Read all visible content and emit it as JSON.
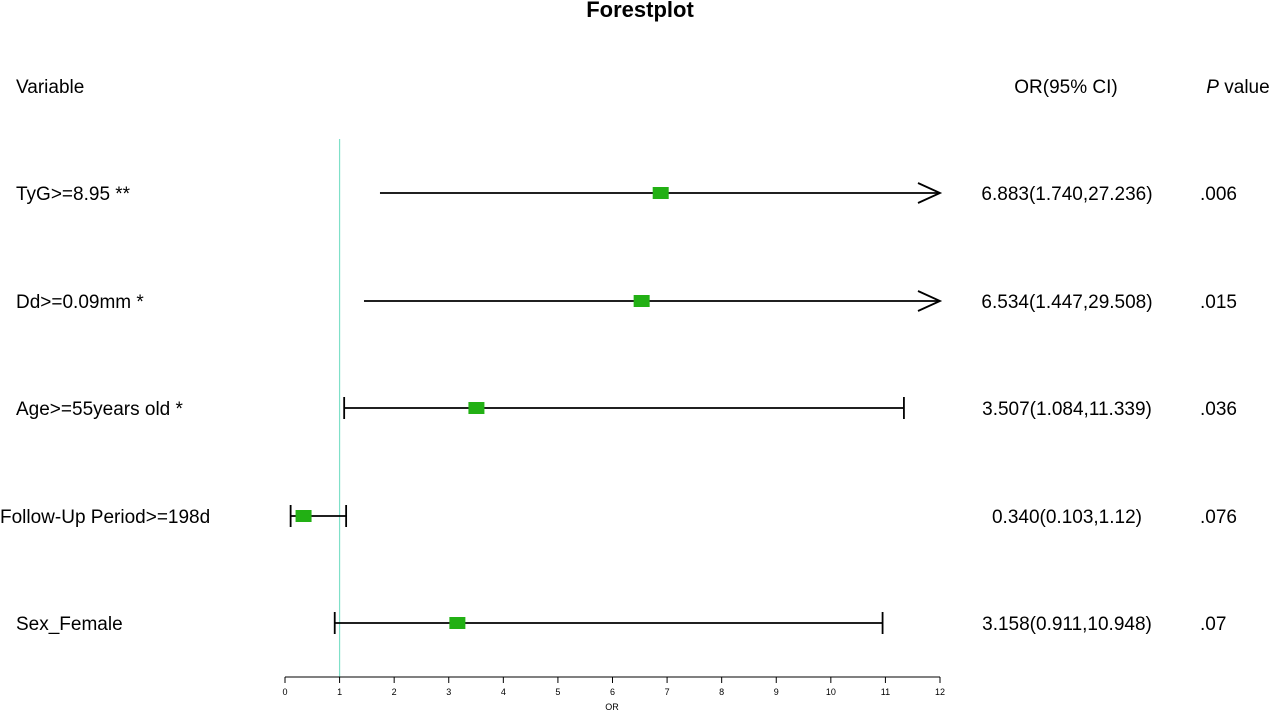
{
  "chart_data": {
    "type": "forest",
    "title": "Forestplot",
    "xlabel": "OR",
    "xlim": [
      0,
      12
    ],
    "xticks": [
      0,
      1,
      2,
      3,
      4,
      5,
      6,
      7,
      8,
      9,
      10,
      11,
      12
    ],
    "reference_line": 1,
    "columns": {
      "variable": "Variable",
      "or_ci": "OR(95% CI)",
      "p_italic": "P",
      "p_rest": " value"
    },
    "rows": [
      {
        "label": "TyG>=8.95 **",
        "or": 6.883,
        "lower": 1.74,
        "upper": 27.236,
        "or_ci_text": "6.883(1.740,27.236)",
        "p_text": ".006"
      },
      {
        "label": "Dd>=0.09mm *",
        "or": 6.534,
        "lower": 1.447,
        "upper": 29.508,
        "or_ci_text": "6.534(1.447,29.508)",
        "p_text": ".015"
      },
      {
        "label": "Age>=55years old *",
        "or": 3.507,
        "lower": 1.084,
        "upper": 11.339,
        "or_ci_text": "3.507(1.084,11.339)",
        "p_text": ".036"
      },
      {
        "label": "Follow-Up Period>=198d",
        "or": 0.34,
        "lower": 0.103,
        "upper": 1.12,
        "or_ci_text": "0.340(0.103,1.12)",
        "p_text": ".076"
      },
      {
        "label": "Sex_Female",
        "or": 3.158,
        "lower": 0.911,
        "upper": 10.948,
        "or_ci_text": "3.158(0.911,10.948)",
        "p_text": ".07"
      }
    ],
    "colors": {
      "point": "#22b014",
      "reference_line": "#7fe0c8",
      "ci_line": "#000000"
    }
  }
}
